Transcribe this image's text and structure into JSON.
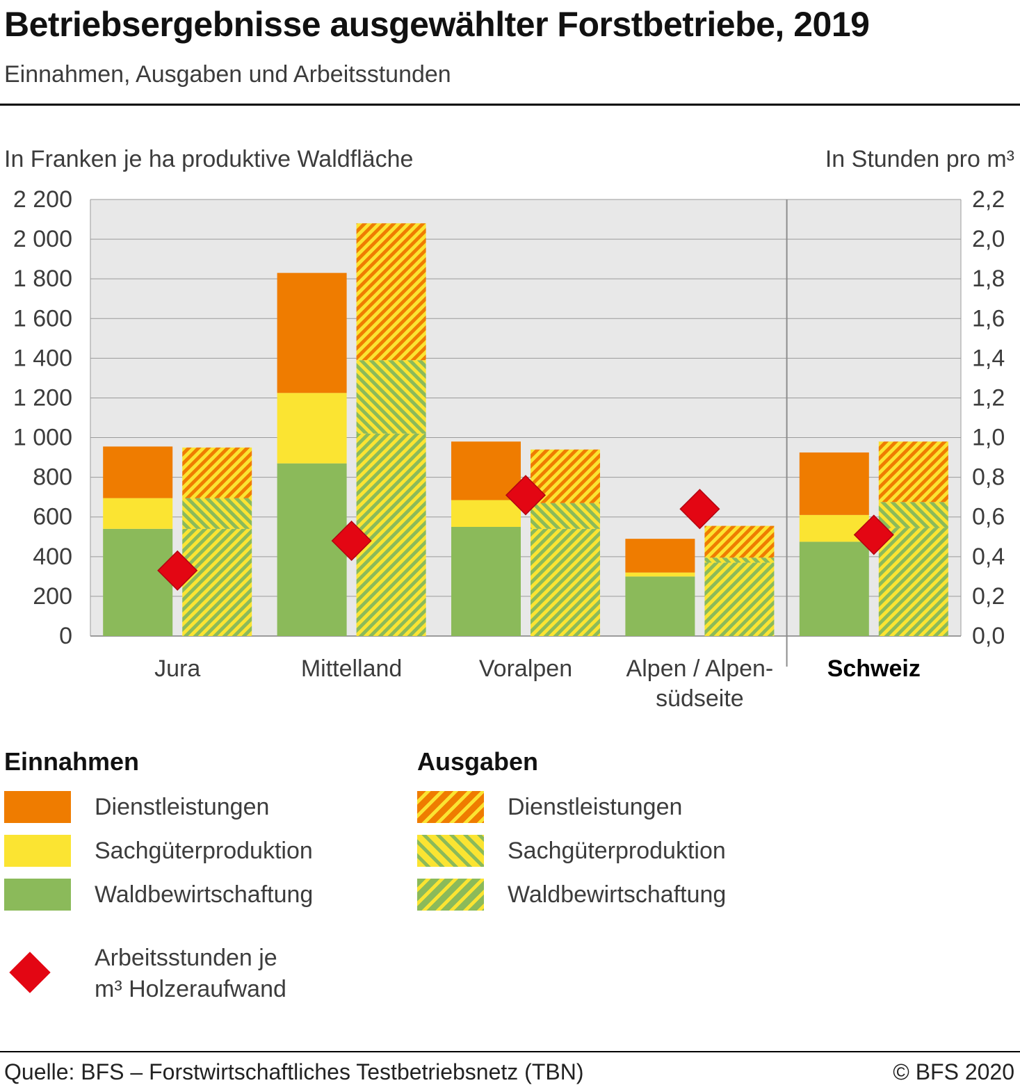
{
  "header": {
    "title": "Betriebsergebnisse ausgewählter Forstbetriebe, 2019",
    "subtitle": "Einnahmen, Ausgaben und Arbeitsstunden"
  },
  "chart_data": {
    "type": "bar",
    "stacked": true,
    "grid": true,
    "left_axis": {
      "label": "In Franken je ha produktive Waldfläche",
      "min": 0,
      "max": 2200,
      "step": 200,
      "tick_labels": [
        "0",
        "200",
        "400",
        "600",
        "800",
        "1 000",
        "1 200",
        "1 400",
        "1 600",
        "1 800",
        "2 000",
        "2 200"
      ]
    },
    "right_axis": {
      "label": "In Stunden pro m³",
      "min": 0,
      "max": 2.2,
      "step": 0.2,
      "tick_labels": [
        "0,0",
        "0,2",
        "0,4",
        "0,6",
        "0,8",
        "1,0",
        "1,2",
        "1,4",
        "1,6",
        "1,8",
        "2,0",
        "2,2"
      ]
    },
    "categories": [
      {
        "lines": [
          "Jura"
        ],
        "bold": false
      },
      {
        "lines": [
          "Mittelland"
        ],
        "bold": false
      },
      {
        "lines": [
          "Voralpen"
        ],
        "bold": false
      },
      {
        "lines": [
          "Alpen / Alpen-",
          "südseite"
        ],
        "bold": false
      },
      {
        "lines": [
          "Schweiz"
        ],
        "bold": true
      }
    ],
    "groups": [
      {
        "name": "Einnahmen",
        "fill_style": "solid",
        "series": [
          {
            "name": "Waldbewirtschaftung",
            "color": "#8bba5a",
            "values": [
              540,
              870,
              550,
              300,
              475
            ]
          },
          {
            "name": "Sachgüterproduktion",
            "color": "#fbe432",
            "values": [
              155,
              355,
              135,
              20,
              135
            ]
          },
          {
            "name": "Dienstleistungen",
            "color": "#ef7c00",
            "values": [
              260,
              605,
              295,
              170,
              315
            ]
          }
        ]
      },
      {
        "name": "Ausgaben",
        "fill_style": "hatched",
        "series": [
          {
            "name": "Waldbewirtschaftung",
            "color": "#8bba5a",
            "hatch_color": "#fbe432",
            "hatch_angle": 45,
            "values": [
              540,
              1020,
              540,
              370,
              545
            ]
          },
          {
            "name": "Sachgüterproduktion",
            "color": "#fbe432",
            "hatch_color": "#8bba5a",
            "hatch_angle": -45,
            "values": [
              155,
              370,
              130,
              25,
              130
            ]
          },
          {
            "name": "Dienstleistungen",
            "color": "#ef7c00",
            "hatch_color": "#fbe432",
            "hatch_angle": 45,
            "values": [
              255,
              690,
              270,
              160,
              305
            ]
          }
        ]
      }
    ],
    "markers": {
      "name": "Arbeitsstunden je m³ Holzeraufwand",
      "legend_lines": [
        "Arbeitsstunden je",
        "m³ Holzeraufwand"
      ],
      "color": "#e30613",
      "axis": "right",
      "values": [
        0.33,
        0.48,
        0.71,
        0.64,
        0.51
      ]
    },
    "plot": {
      "background": "#e8e8e8",
      "gridline_color": "#9a9a9a",
      "separator_before_category": 4
    }
  },
  "footer": {
    "source": "Quelle: BFS – Forstwirtschaftliches Testbetriebsnetz (TBN)",
    "copyright": "© BFS 2020"
  }
}
